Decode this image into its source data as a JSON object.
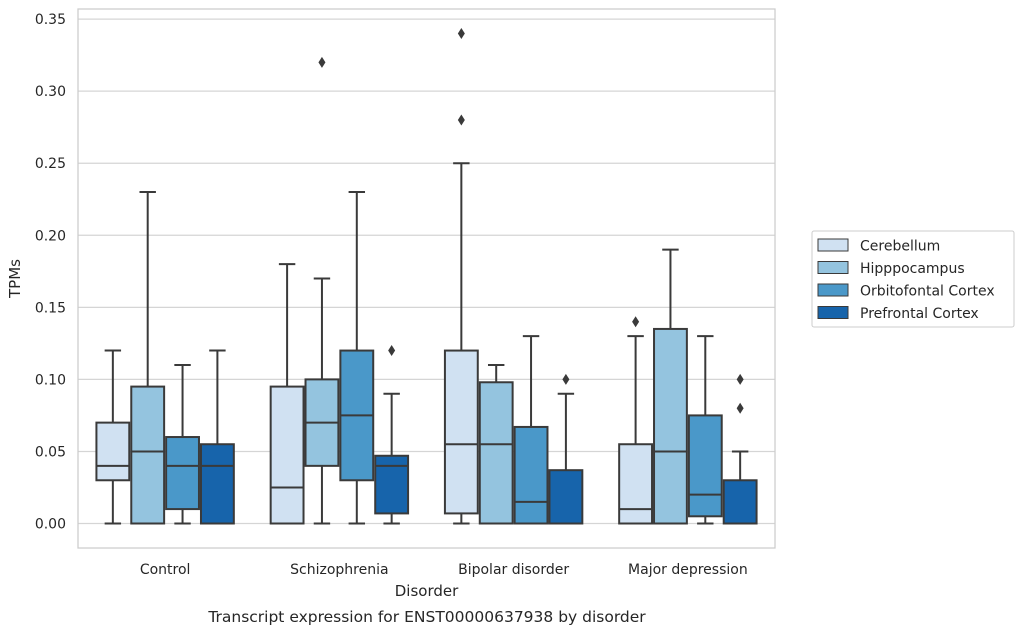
{
  "caption": "Transcript expression for ENST00000637938 by disorder",
  "chart_data": {
    "type": "box",
    "xlabel": "Disorder",
    "ylabel": "TPMs",
    "ylim": [
      -0.017,
      0.357
    ],
    "yticks": [
      "0.00",
      "0.05",
      "0.10",
      "0.15",
      "0.20",
      "0.25",
      "0.30",
      "0.35"
    ],
    "grid": "horizontal",
    "legend_position": "right",
    "categories": [
      "Control",
      "Schizophrenia",
      "Bipolar disorder",
      "Major depression"
    ],
    "series": [
      {
        "name": "Cerebellum",
        "color": "#d0e1f2",
        "boxes": [
          {
            "whislo": 0.0,
            "q1": 0.03,
            "med": 0.04,
            "q3": 0.07,
            "whishi": 0.12,
            "fliers": []
          },
          {
            "whislo": 0.0,
            "q1": 0.0,
            "med": 0.025,
            "q3": 0.095,
            "whishi": 0.18,
            "fliers": []
          },
          {
            "whislo": 0.0,
            "q1": 0.007,
            "med": 0.055,
            "q3": 0.12,
            "whishi": 0.25,
            "fliers": [
              0.28,
              0.34
            ]
          },
          {
            "whislo": 0.0,
            "q1": 0.0,
            "med": 0.01,
            "q3": 0.055,
            "whishi": 0.13,
            "fliers": [
              0.14
            ]
          }
        ]
      },
      {
        "name": "Hipppocampus",
        "color": "#94c4df",
        "boxes": [
          {
            "whislo": 0.0,
            "q1": 0.0,
            "med": 0.05,
            "q3": 0.095,
            "whishi": 0.23,
            "fliers": []
          },
          {
            "whislo": 0.0,
            "q1": 0.04,
            "med": 0.07,
            "q3": 0.1,
            "whishi": 0.17,
            "fliers": [
              0.32
            ]
          },
          {
            "whislo": 0.0,
            "q1": 0.0,
            "med": 0.055,
            "q3": 0.098,
            "whishi": 0.11,
            "fliers": []
          },
          {
            "whislo": 0.0,
            "q1": 0.0,
            "med": 0.05,
            "q3": 0.135,
            "whishi": 0.19,
            "fliers": []
          }
        ]
      },
      {
        "name": "Orbitofontal Cortex",
        "color": "#4a98c9",
        "boxes": [
          {
            "whislo": 0.0,
            "q1": 0.01,
            "med": 0.04,
            "q3": 0.06,
            "whishi": 0.11,
            "fliers": []
          },
          {
            "whislo": 0.0,
            "q1": 0.03,
            "med": 0.075,
            "q3": 0.12,
            "whishi": 0.23,
            "fliers": []
          },
          {
            "whislo": 0.0,
            "q1": 0.0,
            "med": 0.015,
            "q3": 0.067,
            "whishi": 0.13,
            "fliers": []
          },
          {
            "whislo": 0.0,
            "q1": 0.005,
            "med": 0.02,
            "q3": 0.075,
            "whishi": 0.13,
            "fliers": []
          }
        ]
      },
      {
        "name": "Prefrontal Cortex",
        "color": "#1764ab",
        "boxes": [
          {
            "whislo": 0.0,
            "q1": 0.0,
            "med": 0.04,
            "q3": 0.055,
            "whishi": 0.12,
            "fliers": []
          },
          {
            "whislo": 0.0,
            "q1": 0.007,
            "med": 0.04,
            "q3": 0.047,
            "whishi": 0.09,
            "fliers": [
              0.12
            ]
          },
          {
            "whislo": 0.0,
            "q1": 0.0,
            "med": 0.0,
            "q3": 0.037,
            "whishi": 0.09,
            "fliers": [
              0.1
            ]
          },
          {
            "whislo": 0.0,
            "q1": 0.0,
            "med": 0.0,
            "q3": 0.03,
            "whishi": 0.05,
            "fliers": [
              0.08,
              0.1
            ]
          }
        ]
      }
    ]
  }
}
